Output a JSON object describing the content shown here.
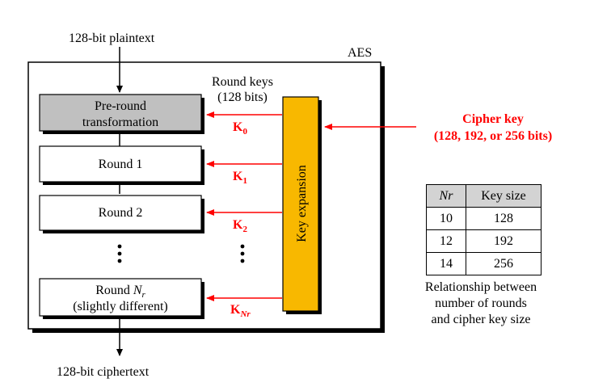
{
  "input_label": "128-bit plaintext",
  "output_label": "128-bit ciphertext",
  "aes_label": "AES",
  "round_keys_line1": "Round keys",
  "round_keys_line2": "(128 bits)",
  "pre_round_line1": "Pre-round",
  "pre_round_line2": "transformation",
  "round1": "Round 1",
  "round2": "Round 2",
  "round_last_prefix": "Round ",
  "round_last_N": "N",
  "round_last_sub": "r",
  "round_last_line2": "(slightly different)",
  "key0": {
    "main": "K",
    "sub": "0"
  },
  "key1": {
    "main": "K",
    "sub": "1"
  },
  "key2": {
    "main": "K",
    "sub": "2"
  },
  "keyNr": {
    "main": "K",
    "sub": "Nr"
  },
  "key_expansion": "Key expansion",
  "cipher_key_line1": "Cipher key",
  "cipher_key_line2": "(128, 192, or 256 bits)",
  "table": {
    "header_nr": "Nr",
    "header_keysize": "Key size",
    "rows": [
      {
        "nr": "10",
        "key": "128"
      },
      {
        "nr": "12",
        "key": "192"
      },
      {
        "nr": "14",
        "key": "256"
      }
    ]
  },
  "caption_line1": "Relationship between",
  "caption_line2": "number of rounds",
  "caption_line3": "and cipher key size",
  "colors": {
    "red": "#ff0000",
    "key_box": "#f8b800",
    "pre_round": "#c0c0c0"
  }
}
